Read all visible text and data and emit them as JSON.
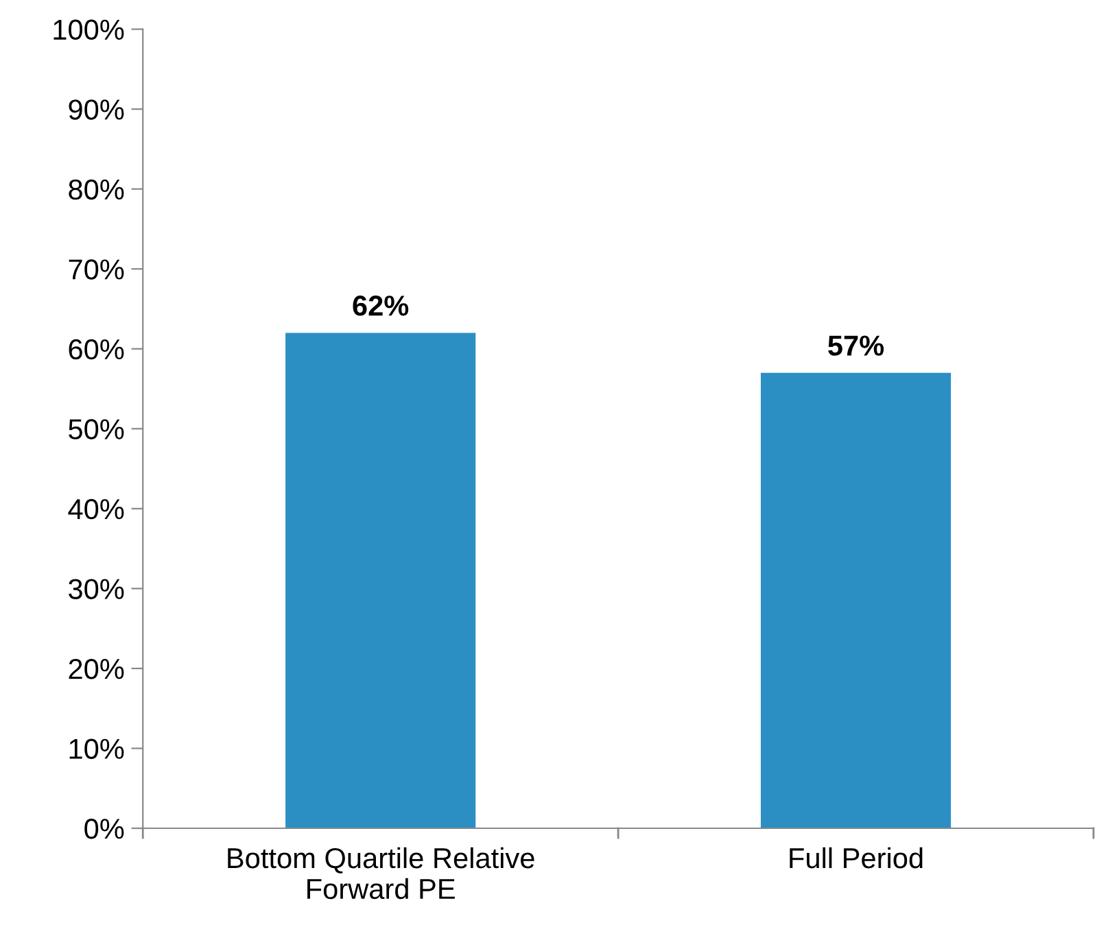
{
  "chart_data": {
    "type": "bar",
    "categories": [
      "Bottom Quartile Relative\nForward PE",
      "Full Period"
    ],
    "values": [
      62,
      57
    ],
    "value_labels": [
      "62%",
      "57%"
    ],
    "color": "#2b8fc4",
    "ylim": [
      0,
      100
    ],
    "yticks": [
      {
        "value": 0,
        "label": "0%"
      },
      {
        "value": 10,
        "label": "10%"
      },
      {
        "value": 20,
        "label": "20%"
      },
      {
        "value": 30,
        "label": "30%"
      },
      {
        "value": 40,
        "label": "40%"
      },
      {
        "value": 50,
        "label": "50%"
      },
      {
        "value": 60,
        "label": "60%"
      },
      {
        "value": 70,
        "label": "70%"
      },
      {
        "value": 80,
        "label": "80%"
      },
      {
        "value": 90,
        "label": "90%"
      },
      {
        "value": 100,
        "label": "100%"
      }
    ],
    "grid": false,
    "legend": false
  }
}
